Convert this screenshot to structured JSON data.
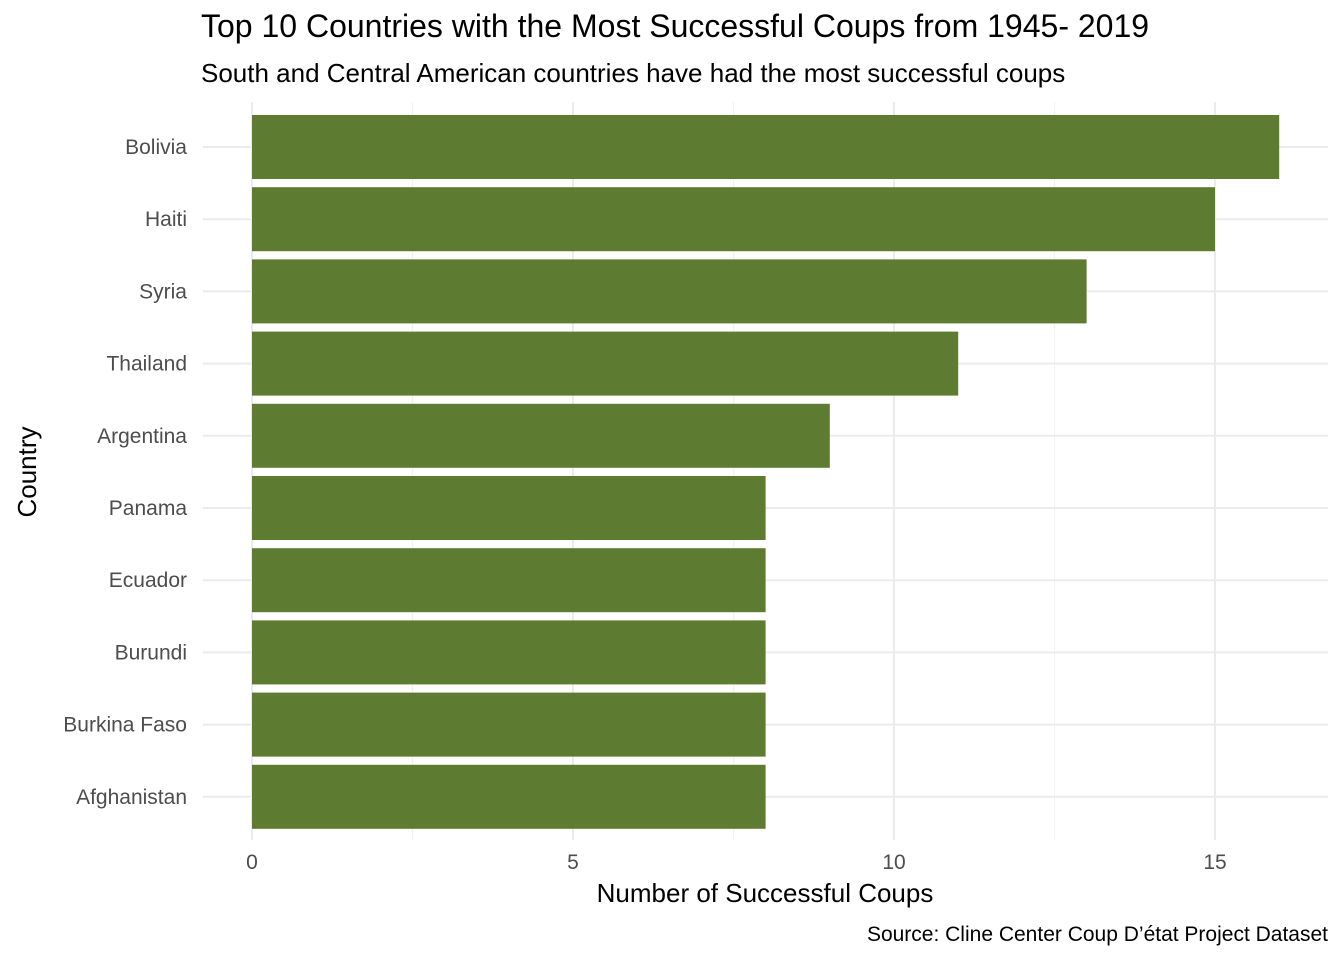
{
  "chart_data": {
    "type": "bar",
    "orientation": "horizontal",
    "title": "Top 10 Countries with the Most Successful Coups from 1945- 2019",
    "subtitle": "South and Central American countries have had the most successful coups",
    "xlabel": "Number of Successful Coups",
    "ylabel": "Country",
    "caption": "Source: Cline Center Coup D’état Project Dataset",
    "categories": [
      "Bolivia",
      "Haiti",
      "Syria",
      "Thailand",
      "Argentina",
      "Panama",
      "Ecuador",
      "Burundi",
      "Burkina Faso",
      "Afghanistan"
    ],
    "values": [
      16,
      15,
      13,
      11,
      9,
      8,
      8,
      8,
      8,
      8
    ],
    "xlim": [
      0,
      16
    ],
    "xticks": [
      0,
      5,
      10,
      15
    ],
    "bar_color": "#5e7c31",
    "grid": true,
    "legend": "none"
  }
}
